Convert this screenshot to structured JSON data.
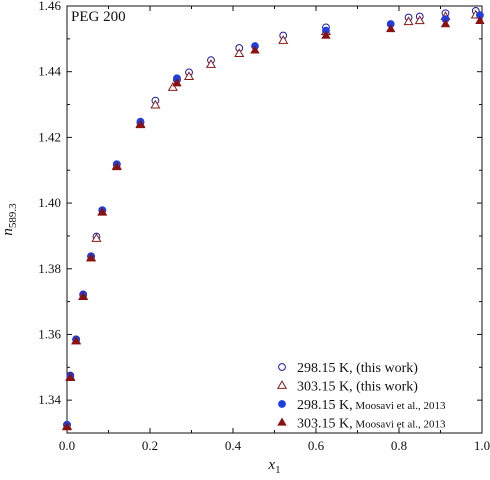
{
  "chart_data": {
    "type": "scatter",
    "panel_label": "PEG 200",
    "xlabel": "x",
    "xlabel_sub": "1",
    "ylabel": "n",
    "ylabel_sub": "589.3",
    "xlim": [
      0.0,
      1.0
    ],
    "ylim": [
      1.33,
      1.46
    ],
    "x_ticks": [
      0.0,
      0.2,
      0.4,
      0.6,
      0.8,
      1.0
    ],
    "x_tick_labels": [
      "0.0",
      "0.2",
      "0.4",
      "0.6",
      "0.8",
      "1.0"
    ],
    "y_ticks": [
      1.34,
      1.36,
      1.38,
      1.4,
      1.42,
      1.44,
      1.46
    ],
    "y_tick_labels": [
      "1.34",
      "1.36",
      "1.38",
      "1.40",
      "1.42",
      "1.44",
      "1.46"
    ],
    "grid": false,
    "legend_position": "bottom-right",
    "series": [
      {
        "name": "298.15 K, (this work)",
        "name_main": "298.15 K, (this work)",
        "name_small": "",
        "marker": "circle-open",
        "color": "#1a1aa8",
        "x": [
          0.0,
          0.008,
          0.022,
          0.039,
          0.058,
          0.071,
          0.085,
          0.12,
          0.177,
          0.213,
          0.265,
          0.294,
          0.347,
          0.415,
          0.521,
          0.624,
          0.823,
          0.85,
          0.912,
          0.985
        ],
        "y": [
          1.3325,
          1.3475,
          1.3585,
          1.3722,
          1.3838,
          1.3898,
          1.3978,
          1.4118,
          1.4245,
          1.4312,
          1.4375,
          1.4398,
          1.4435,
          1.4472,
          1.451,
          1.4535,
          1.4565,
          1.4568,
          1.4578,
          1.4585
        ]
      },
      {
        "name": "303.15 K, (this work)",
        "name_main": "303.15 K, (this work)",
        "name_small": "",
        "marker": "triangle-open",
        "color": "#8b1a1a",
        "x": [
          0.0,
          0.008,
          0.022,
          0.039,
          0.058,
          0.071,
          0.085,
          0.12,
          0.177,
          0.213,
          0.255,
          0.294,
          0.347,
          0.415,
          0.521,
          0.624,
          0.823,
          0.85,
          0.912,
          0.985
        ],
        "y": [
          1.332,
          1.347,
          1.358,
          1.3715,
          1.3833,
          1.3892,
          1.3972,
          1.4112,
          1.424,
          1.4298,
          1.4352,
          1.4385,
          1.4422,
          1.4455,
          1.4495,
          1.4522,
          1.4552,
          1.4555,
          1.4568,
          1.4572
        ]
      },
      {
        "name": "298.15 K, Moosavi et al., 2013",
        "name_main": "298.15 K,",
        "name_small": "Moosavi et al., 2013",
        "marker": "circle-filled",
        "color": "#1f3fe0",
        "x": [
          0.0,
          0.008,
          0.022,
          0.039,
          0.058,
          0.085,
          0.12,
          0.177,
          0.265,
          0.453,
          0.624,
          0.78,
          0.912,
          0.995
        ],
        "y": [
          1.3325,
          1.3472,
          1.3585,
          1.372,
          1.3838,
          1.3978,
          1.4118,
          1.4248,
          1.438,
          1.4478,
          1.4525,
          1.4545,
          1.456,
          1.4572
        ]
      },
      {
        "name": "303.15 K, Moosavi et al., 2013",
        "name_main": "303.15 K,",
        "name_small": "Moosavi et al., 2013",
        "marker": "triangle-filled",
        "color": "#8b1010",
        "x": [
          0.0,
          0.008,
          0.022,
          0.039,
          0.058,
          0.085,
          0.12,
          0.177,
          0.265,
          0.453,
          0.624,
          0.78,
          0.912,
          0.995
        ],
        "y": [
          1.3318,
          1.3468,
          1.358,
          1.3715,
          1.3832,
          1.3972,
          1.411,
          1.4238,
          1.4365,
          1.4465,
          1.451,
          1.453,
          1.4545,
          1.4555
        ]
      }
    ]
  }
}
